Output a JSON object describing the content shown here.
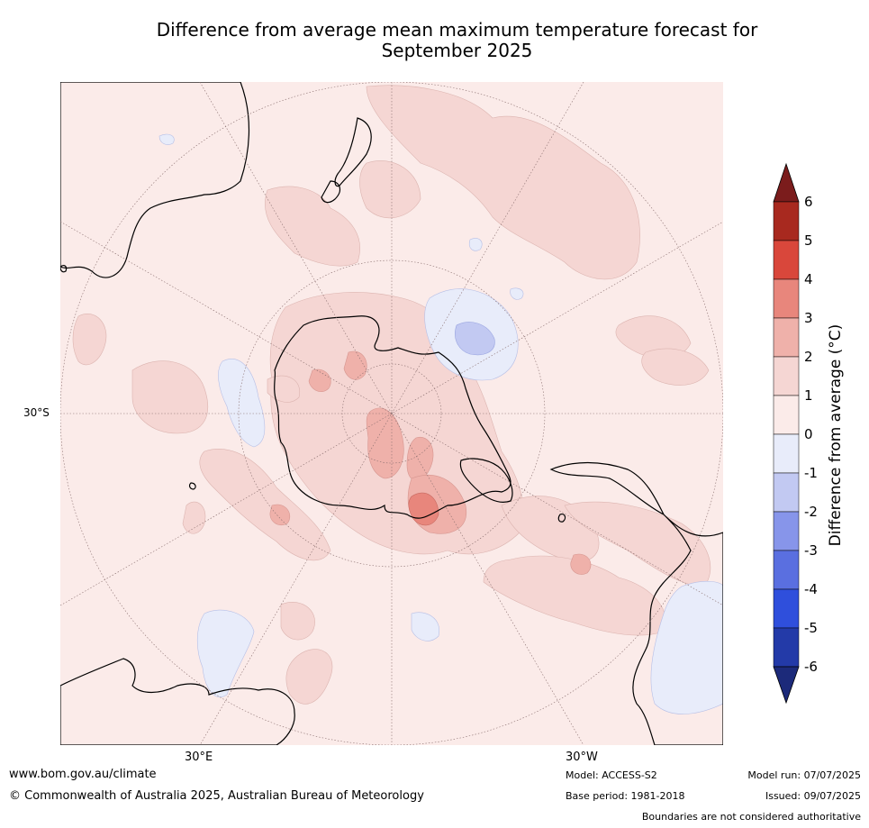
{
  "title_line1": "Difference from average mean maximum temperature forecast for",
  "title_line2": "September 2025",
  "grid_labels": {
    "lat": "30°S",
    "lon_left": "30°E",
    "lon_right": "30°W"
  },
  "colorbar": {
    "label": "Difference from average (°C)",
    "ticks": [
      "6",
      "5",
      "4",
      "3",
      "2",
      "1",
      "0",
      "-1",
      "-2",
      "-3",
      "-4",
      "-5",
      "-6"
    ],
    "colors": {
      "above6": "#7b1c1c",
      "5_6": "#a8291f",
      "4_5": "#d9473b",
      "3_4": "#e8867c",
      "2_3": "#efb1aa",
      "1_2": "#f5d6d3",
      "0_1": "#fbebe9",
      "m1_0": "#e8ecfa",
      "m2_m1": "#c2c9f2",
      "m3_m2": "#8795ea",
      "m4_m3": "#5a6fe0",
      "m5_m4": "#2f4fdc",
      "m6_m5": "#233aa8",
      "below_m6": "#1c2a7a"
    }
  },
  "footer": {
    "website": "www.bom.gov.au/climate",
    "copyright": "© Commonwealth of Australia 2025, Australian Bureau of Meteorology",
    "model": "Model: ACCESS-S2",
    "base_period": "Base period: 1981-2018",
    "model_run": "Model run: 07/07/2025",
    "issued": "Issued: 09/07/2025",
    "disclaimer": "Boundaries are not considered authoritative"
  }
}
